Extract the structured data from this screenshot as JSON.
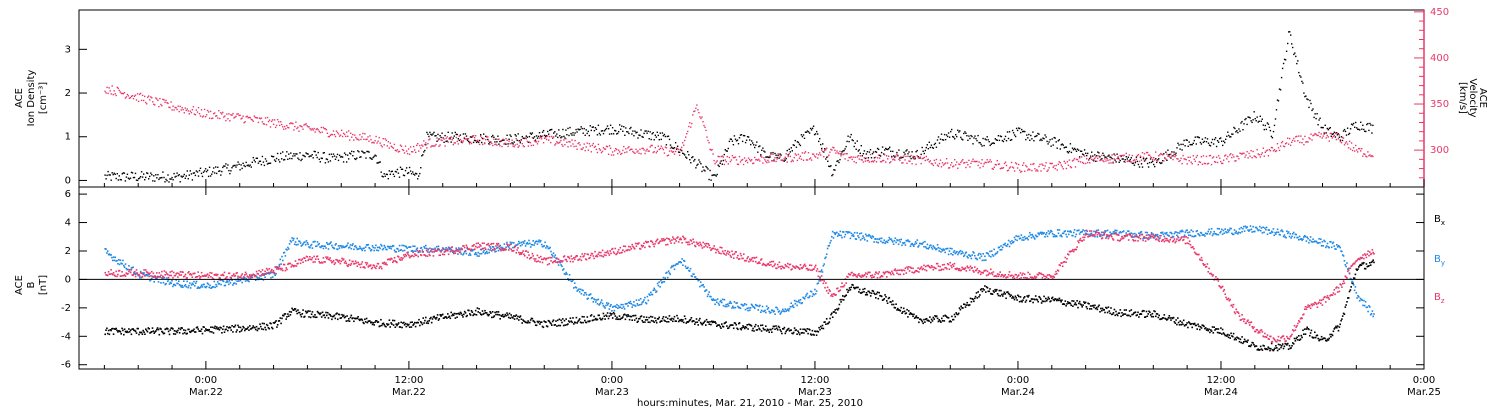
{
  "chart_data": [
    {
      "type": "scatter",
      "panel": "top",
      "ylabel_left": [
        "ACE",
        "Ion Density",
        "[cm⁻³]"
      ],
      "ylabel_right": [
        "ACE",
        "Velocity",
        "[km/s]"
      ],
      "ylim_left": [
        -0.15,
        3.9
      ],
      "yticks_left": [
        0,
        1,
        2,
        3
      ],
      "ylim_right": [
        260,
        452
      ],
      "yticks_right": [
        300,
        350,
        400,
        450
      ],
      "series": [
        {
          "axis": "left",
          "color": "#000000",
          "x": [
            -6.0,
            -4.5,
            -3.0,
            -1.5,
            0.0,
            1.5,
            3.0,
            4.5,
            6.0,
            7.5,
            9.0,
            10.0,
            10.5,
            11.0,
            12.0,
            12.5,
            13.0,
            15.0,
            18.0,
            21.0,
            24.0,
            27.0,
            29.0,
            30.0,
            31.0,
            32.0,
            33.0,
            34.0,
            35.0,
            36.0,
            37.0,
            38.0,
            39.0,
            40.0,
            42.0,
            44.0,
            46.0,
            48.0,
            50.0,
            52.0,
            54.0,
            56.0,
            58.0,
            60.0,
            62.0,
            63.0,
            64.0,
            65.0,
            66.0,
            67.0,
            68.0,
            69.0
          ],
          "y": [
            0.1,
            0.1,
            0.1,
            0.1,
            0.2,
            0.3,
            0.45,
            0.55,
            0.6,
            0.5,
            0.6,
            0.6,
            0.1,
            0.2,
            0.2,
            0.1,
            1.0,
            1.0,
            0.95,
            1.1,
            1.2,
            1.0,
            0.4,
            0.05,
            0.9,
            1.0,
            0.6,
            0.5,
            0.9,
            1.2,
            0.2,
            1.0,
            0.6,
            0.7,
            0.6,
            1.1,
            0.9,
            1.1,
            0.9,
            0.6,
            0.5,
            0.4,
            0.9,
            0.9,
            1.5,
            1.1,
            3.4,
            1.9,
            1.2,
            1.0,
            1.3,
            1.2
          ]
        },
        {
          "axis": "right",
          "color": "#e8386a",
          "x": [
            -6.0,
            -4.0,
            -2.0,
            0.0,
            2.0,
            4.0,
            6.0,
            8.0,
            10.0,
            11.0,
            12.0,
            13.0,
            14.0,
            16.0,
            18.0,
            20.0,
            22.0,
            24.0,
            26.0,
            28.0,
            29.0,
            30.0,
            32.0,
            34.0,
            36.0,
            37.0,
            38.0,
            40.0,
            42.0,
            44.0,
            46.0,
            48.0,
            50.0,
            52.0,
            54.0,
            56.0,
            58.0,
            60.0,
            61.0,
            62.0,
            63.0,
            64.0,
            65.0,
            66.0,
            67.0,
            68.0,
            69.0
          ],
          "y": [
            368,
            358,
            348,
            340,
            336,
            330,
            324,
            318,
            312,
            305,
            300,
            308,
            310,
            312,
            308,
            312,
            306,
            300,
            302,
            298,
            350,
            290,
            290,
            292,
            295,
            300,
            292,
            292,
            290,
            286,
            286,
            282,
            282,
            290,
            292,
            294,
            290,
            290,
            294,
            296,
            300,
            310,
            312,
            316,
            314,
            300,
            296
          ]
        }
      ]
    },
    {
      "type": "scatter",
      "panel": "bottom",
      "ylabel_left": [
        "ACE",
        "B",
        "[nT]"
      ],
      "ylim": [
        -6.3,
        6.5
      ],
      "yticks": [
        -6,
        -4,
        -2,
        0,
        2,
        4,
        6
      ],
      "zero_line": true,
      "legend": [
        {
          "name": "B",
          "sub": "x",
          "color": "#000000"
        },
        {
          "name": "B",
          "sub": "y",
          "color": "#1e88e5"
        },
        {
          "name": "B",
          "sub": "z",
          "color": "#e8386a"
        }
      ],
      "series": [
        {
          "name": "Bx",
          "color": "#000000",
          "x": [
            -6.0,
            -4.0,
            -2.0,
            0.0,
            2.0,
            4.0,
            5.0,
            6.0,
            8.0,
            10.0,
            12.0,
            14.0,
            16.0,
            18.0,
            20.0,
            22.0,
            24.0,
            26.0,
            28.0,
            30.0,
            32.0,
            34.0,
            36.0,
            37.0,
            38.0,
            40.0,
            42.0,
            44.0,
            46.0,
            48.0,
            50.0,
            52.0,
            54.0,
            56.0,
            58.0,
            60.0,
            61.0,
            62.0,
            64.0,
            65.0,
            66.0,
            67.0,
            68.0,
            69.0
          ],
          "y": [
            -3.6,
            -3.6,
            -3.6,
            -3.5,
            -3.4,
            -3.2,
            -2.2,
            -2.4,
            -2.6,
            -3.0,
            -3.1,
            -2.6,
            -2.2,
            -2.6,
            -3.1,
            -2.8,
            -2.5,
            -2.8,
            -2.7,
            -3.1,
            -3.3,
            -3.5,
            -3.7,
            -2.5,
            -0.5,
            -1.2,
            -2.8,
            -2.7,
            -0.6,
            -1.3,
            -1.4,
            -1.8,
            -2.3,
            -2.4,
            -3.1,
            -3.6,
            -4.1,
            -4.7,
            -4.7,
            -3.5,
            -4.3,
            -3.2,
            0.9,
            1.2
          ]
        },
        {
          "name": "By",
          "color": "#1e88e5",
          "x": [
            -6.0,
            -4.0,
            -2.0,
            0.0,
            2.0,
            4.0,
            5.0,
            6.0,
            8.0,
            10.0,
            12.0,
            14.0,
            16.0,
            18.0,
            20.0,
            22.0,
            24.0,
            26.0,
            28.0,
            30.0,
            32.0,
            34.0,
            36.0,
            37.0,
            38.0,
            40.0,
            42.0,
            44.0,
            46.0,
            48.0,
            50.0,
            52.0,
            54.0,
            56.0,
            58.0,
            60.0,
            62.0,
            64.0,
            66.0,
            67.0,
            68.0,
            69.0
          ],
          "y": [
            2.0,
            0.4,
            -0.2,
            -0.4,
            0.0,
            0.4,
            2.8,
            2.5,
            2.4,
            2.3,
            2.2,
            2.2,
            1.9,
            2.5,
            2.6,
            -0.8,
            -2.0,
            -1.4,
            1.5,
            -1.5,
            -1.9,
            -2.2,
            -0.8,
            3.2,
            3.2,
            2.8,
            2.6,
            2.0,
            1.6,
            3.0,
            3.3,
            3.3,
            3.3,
            3.1,
            3.3,
            3.4,
            3.6,
            3.2,
            2.6,
            2.3,
            -1.0,
            -2.5
          ]
        },
        {
          "name": "Bz",
          "color": "#e8386a",
          "x": [
            -6.0,
            -4.0,
            -2.0,
            0.0,
            2.0,
            4.0,
            5.0,
            6.0,
            8.0,
            10.0,
            12.0,
            14.0,
            16.0,
            18.0,
            20.0,
            22.0,
            24.0,
            26.0,
            28.0,
            30.0,
            32.0,
            34.0,
            36.0,
            37.0,
            38.0,
            40.0,
            42.0,
            44.0,
            46.0,
            48.0,
            50.0,
            52.0,
            54.0,
            56.0,
            58.0,
            60.0,
            61.0,
            62.0,
            63.0,
            64.0,
            65.0,
            66.0,
            67.0,
            68.0,
            69.0
          ],
          "y": [
            0.5,
            0.5,
            0.4,
            0.3,
            0.3,
            0.7,
            1.0,
            1.5,
            1.3,
            0.9,
            1.8,
            2.0,
            2.4,
            2.3,
            1.3,
            1.6,
            2.0,
            2.5,
            2.9,
            2.2,
            1.5,
            1.0,
            0.8,
            -1.2,
            0.3,
            0.4,
            0.8,
            1.0,
            0.6,
            0.3,
            0.3,
            3.3,
            3.0,
            3.0,
            2.8,
            -0.5,
            -2.5,
            -3.4,
            -4.2,
            -4.0,
            -2.0,
            -1.5,
            -0.5,
            1.5,
            2.1
          ]
        }
      ]
    }
  ],
  "x_axis": {
    "xlim_hours": [
      -7.5,
      72.0
    ],
    "ticks": [
      {
        "hours": 0,
        "time": "0:00",
        "date": "Mar.22"
      },
      {
        "hours": 12,
        "time": "12:00",
        "date": "Mar.22"
      },
      {
        "hours": 24,
        "time": "0:00",
        "date": "Mar.23"
      },
      {
        "hours": 36,
        "time": "12:00",
        "date": "Mar.23"
      },
      {
        "hours": 48,
        "time": "0:00",
        "date": "Mar.24"
      },
      {
        "hours": 60,
        "time": "12:00",
        "date": "Mar.24"
      },
      {
        "hours": 72,
        "time": "0:00",
        "date": "Mar.25"
      }
    ],
    "label": "hours:minutes, Mar. 21, 2010 - Mar. 25, 2010"
  }
}
